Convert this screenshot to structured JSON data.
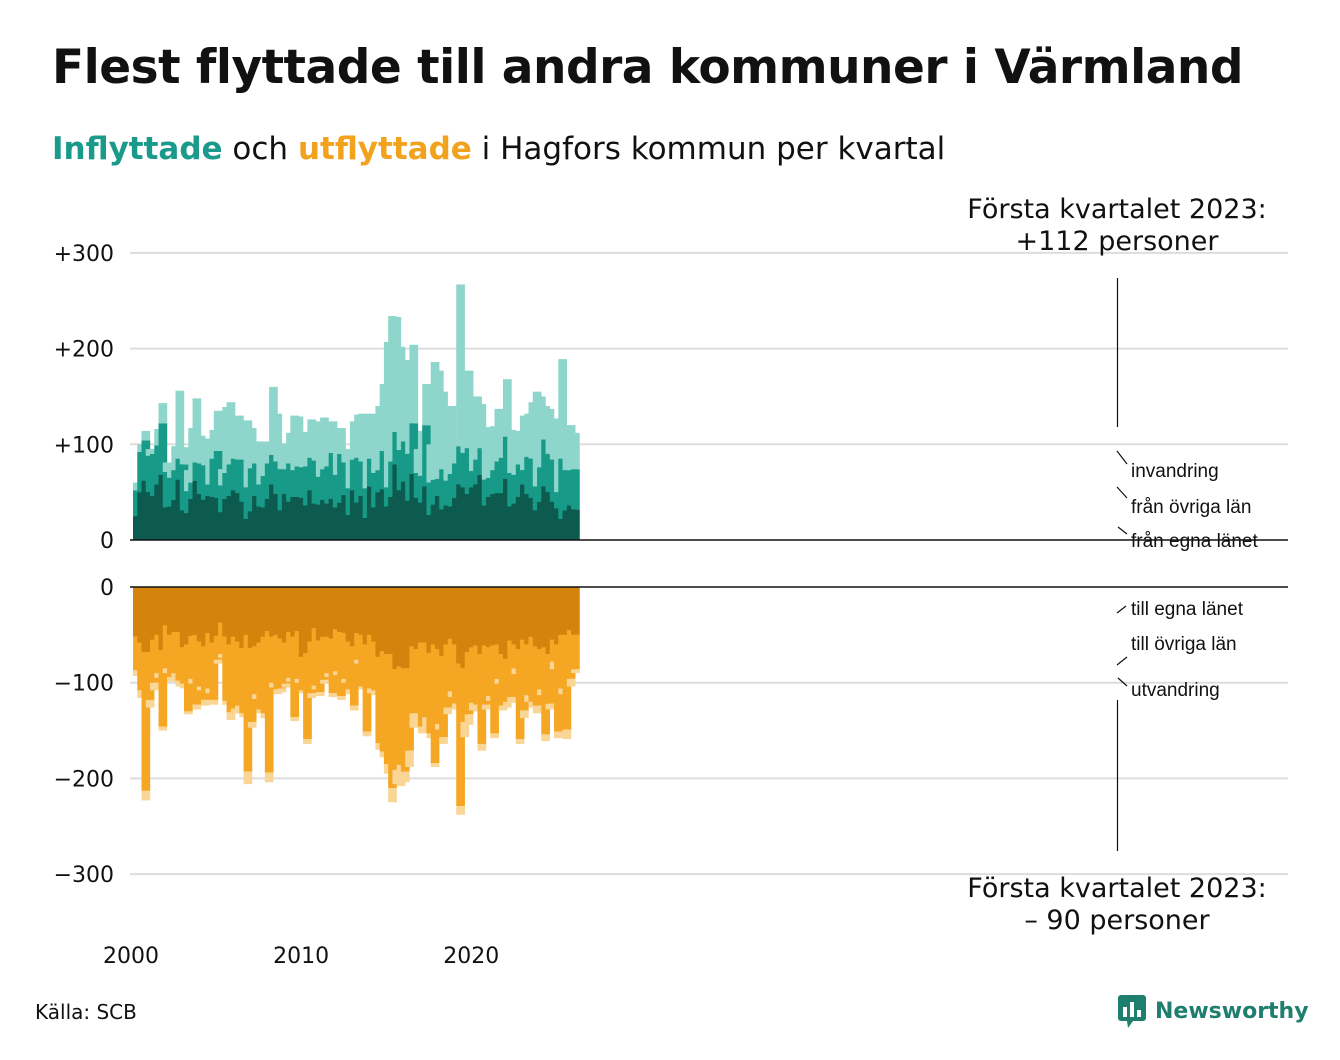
{
  "title": "Flest flyttade till andra kommuner i Värmland",
  "subtitle": {
    "in_word": "Inflyttade",
    "mid": " och ",
    "out_word": "utflyttade",
    "rest": " i Hagfors kommun per kvartal"
  },
  "annotations": {
    "top_line1": "Första kvartalet 2023:",
    "top_line2": "+112 personer",
    "bottom_line1": "Första kvartalet 2023:",
    "bottom_line2": "– 90 personer"
  },
  "source": "Källa: SCB",
  "logo_text": "Newsworthy",
  "colors": {
    "in_own": "#0d5a4e",
    "in_other": "#189a88",
    "in_immig": "#8ed6cb",
    "out_own": "#d4830d",
    "out_other": "#f5a623",
    "out_emig": "#f9d596",
    "grid": "#dddddd",
    "accent_in": "#1a9a8a",
    "accent_out": "#f2a21c",
    "logo": "#1f7f6e"
  },
  "chart_data": {
    "type": "bar",
    "stacked": true,
    "period": "quarter",
    "x_start": "2000 Q1",
    "x_end": "2023 Q1",
    "x_ticks": [
      "2000",
      "2010",
      "2020"
    ],
    "upper": {
      "y_ticks": [
        "+300",
        "+200",
        "+100",
        "0"
      ],
      "ylim": [
        0,
        300
      ],
      "series": [
        {
          "name": "från egna länet",
          "values": [
            25,
            50,
            62,
            50,
            46,
            58,
            68,
            34,
            35,
            42,
            63,
            31,
            28,
            43,
            62,
            48,
            42,
            46,
            45,
            44,
            29,
            43,
            46,
            52,
            49,
            40,
            22,
            30,
            46,
            35,
            34,
            43,
            58,
            48,
            31,
            48,
            40,
            45,
            45,
            44,
            36,
            52,
            38,
            37,
            42,
            38,
            43,
            34,
            39,
            47,
            26,
            52,
            39,
            46,
            23,
            56,
            34,
            50,
            53,
            35,
            45,
            79,
            52,
            61,
            41,
            69,
            44,
            39,
            56,
            26,
            37,
            46,
            32,
            36,
            35,
            44,
            58,
            55,
            48,
            55,
            58,
            68,
            36,
            45,
            48,
            49,
            49,
            64,
            35,
            38,
            45,
            58,
            48,
            44,
            31,
            40,
            56,
            50,
            40,
            33,
            22,
            31,
            36,
            32
          ]
        },
        {
          "name": "från övriga län",
          "values": [
            27,
            42,
            42,
            38,
            44,
            41,
            54,
            37,
            30,
            31,
            22,
            48,
            23,
            17,
            19,
            32,
            36,
            12,
            40,
            49,
            28,
            27,
            33,
            33,
            35,
            44,
            33,
            45,
            34,
            23,
            33,
            37,
            31,
            34,
            43,
            26,
            40,
            28,
            32,
            32,
            41,
            34,
            45,
            29,
            32,
            39,
            48,
            34,
            51,
            34,
            28,
            32,
            47,
            36,
            31,
            29,
            36,
            23,
            40,
            20,
            37,
            34,
            42,
            42,
            49,
            53,
            26,
            28,
            64,
            34,
            26,
            18,
            42,
            26,
            34,
            36,
            40,
            36,
            48,
            17,
            26,
            28,
            27,
            20,
            25,
            33,
            37,
            44,
            35,
            30,
            34,
            15,
            39,
            41,
            25,
            36,
            49,
            40,
            44,
            17,
            63,
            42,
            37,
            42
          ]
        },
        {
          "name": "invandring",
          "values": [
            8,
            8,
            10,
            7,
            5,
            17,
            21,
            10,
            10,
            25,
            71,
            18,
            22,
            57,
            67,
            29,
            22,
            48,
            30,
            42,
            17,
            69,
            65,
            35,
            46,
            40,
            70,
            42,
            23,
            31,
            36,
            16,
            71,
            50,
            27,
            26,
            32,
            57,
            52,
            34,
            36,
            40,
            31,
            58,
            54,
            37,
            33,
            29,
            27,
            14,
            31,
            40,
            45,
            50,
            36,
            47,
            54,
            67,
            70,
            152,
            152,
            120,
            108,
            85,
            97,
            82,
            25,
            47,
            43,
            40,
            123,
            113,
            81,
            35,
            71,
            12,
            169,
            77,
            81,
            30,
            66,
            46,
            47,
            53,
            46,
            55,
            51,
            60,
            45,
            46,
            29,
            57,
            45,
            59,
            99,
            74,
            35,
            47,
            22,
            77,
            104,
            47,
            47,
            38
          ]
        }
      ]
    },
    "lower": {
      "y_ticks": [
        "0",
        "−100",
        "−200",
        "−300"
      ],
      "ylim": [
        -300,
        0
      ],
      "series": [
        {
          "name": "till egna länet",
          "values": [
            -52,
            -58,
            -68,
            -68,
            -55,
            -50,
            -66,
            -40,
            -50,
            -47,
            -47,
            -63,
            -60,
            -51,
            -50,
            -57,
            -62,
            -48,
            -58,
            -51,
            -37,
            -52,
            -60,
            -52,
            -57,
            -64,
            -50,
            -64,
            -62,
            -58,
            -52,
            -46,
            -52,
            -50,
            -54,
            -58,
            -47,
            -52,
            -46,
            -73,
            -69,
            -57,
            -43,
            -56,
            -52,
            -52,
            -54,
            -44,
            -47,
            -48,
            -57,
            -62,
            -48,
            -50,
            -60,
            -50,
            -57,
            -73,
            -67,
            -70,
            -70,
            -86,
            -83,
            -85,
            -85,
            -62,
            -65,
            -58,
            -58,
            -69,
            -60,
            -65,
            -72,
            -60,
            -54,
            -60,
            -80,
            -85,
            -68,
            -63,
            -61,
            -70,
            -61,
            -63,
            -61,
            -60,
            -70,
            -75,
            -56,
            -60,
            -65,
            -55,
            -60,
            -52,
            -62,
            -65,
            -63,
            -70,
            -55,
            -60,
            -50,
            -50,
            -45,
            -50
          ]
        },
        {
          "name": "till övriga län",
          "values": [
            -35,
            -50,
            -145,
            -50,
            -45,
            -40,
            -80,
            -45,
            -44,
            -43,
            -51,
            -38,
            -70,
            -45,
            -73,
            -47,
            -56,
            -58,
            -60,
            -25,
            -33,
            -67,
            -71,
            -75,
            -67,
            -68,
            -143,
            -77,
            -50,
            -70,
            -80,
            -148,
            -48,
            -57,
            -52,
            -43,
            -48,
            -84,
            -50,
            -35,
            -90,
            -54,
            -60,
            -54,
            -45,
            -38,
            -57,
            -44,
            -67,
            -48,
            -50,
            -62,
            -28,
            -54,
            -91,
            -56,
            -51,
            -90,
            -105,
            -115,
            -140,
            -105,
            -103,
            -108,
            -86,
            -70,
            -67,
            -88,
            -78,
            -84,
            -124,
            -78,
            -85,
            -66,
            -55,
            -62,
            -149,
            -56,
            -65,
            -58,
            -62,
            -94,
            -62,
            -51,
            -92,
            -36,
            -54,
            -45,
            -59,
            -25,
            -94,
            -74,
            -53,
            -68,
            -62,
            -42,
            -91,
            -52,
            -23,
            -91,
            -56,
            -99,
            -51,
            -36
          ]
        },
        {
          "name": "utvandring",
          "values": [
            -6,
            -8,
            -10,
            -8,
            -8,
            -5,
            -4,
            -5,
            -5,
            -4,
            -6,
            -5,
            -3,
            -5,
            -5,
            -4,
            -6,
            -5,
            -5,
            -4,
            -4,
            -4,
            -8,
            -5,
            -4,
            -4,
            -13,
            -6,
            -5,
            -4,
            -5,
            -10,
            -5,
            -5,
            -4,
            -4,
            -4,
            -4,
            -4,
            -3,
            -5,
            -5,
            -4,
            -4,
            -4,
            -4,
            -4,
            -4,
            -4,
            -4,
            -5,
            -5,
            -4,
            -3,
            -5,
            -5,
            -5,
            -7,
            -6,
            -10,
            -15,
            -15,
            -22,
            -11,
            -17,
            -15,
            -5,
            -7,
            -10,
            -5,
            -4,
            -6,
            -7,
            -7,
            -6,
            -6,
            -9,
            -16,
            -11,
            -8,
            -7,
            -7,
            -5,
            -5,
            -5,
            -5,
            -5,
            -6,
            -6,
            -6,
            -5,
            -8,
            -7,
            -6,
            -8,
            -6,
            -7,
            -6,
            -8,
            -7,
            -6,
            -10,
            -8,
            -4
          ]
        }
      ]
    },
    "highlight": "2023 Q1"
  }
}
